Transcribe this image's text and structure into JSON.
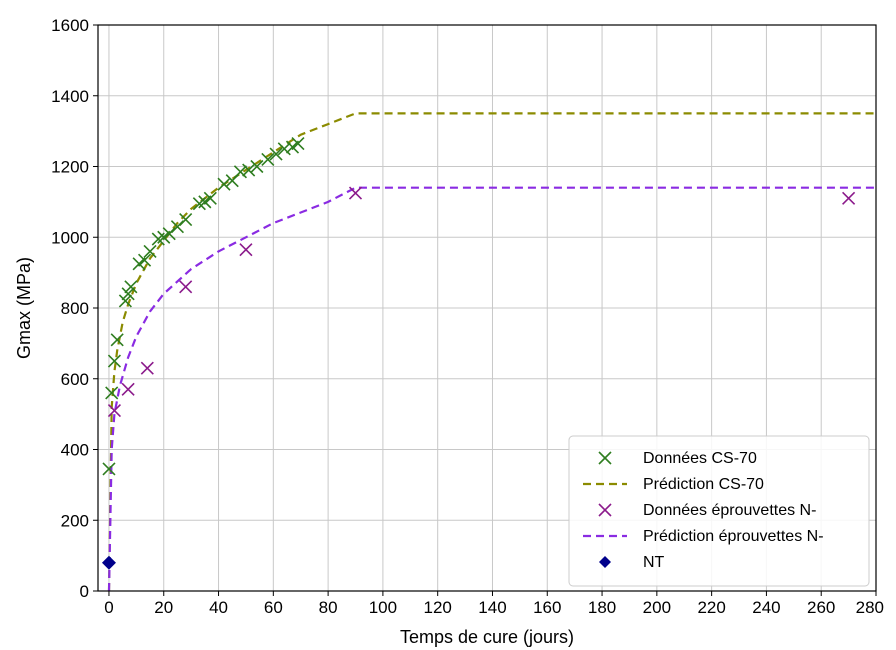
{
  "chart_data": {
    "type": "scatter",
    "title": "",
    "xlabel": "Temps de cure (jours)",
    "ylabel": "Gmax (MPa)",
    "xlim": [
      -4,
      280
    ],
    "ylim": [
      0,
      1600
    ],
    "xticks": [
      0,
      20,
      40,
      60,
      80,
      100,
      120,
      140,
      160,
      180,
      200,
      220,
      240,
      260,
      280
    ],
    "yticks": [
      0,
      200,
      400,
      600,
      800,
      1000,
      1200,
      1400,
      1600
    ],
    "grid": true,
    "legend_position": "bottom-right",
    "series": [
      {
        "name": "Données CS-70",
        "kind": "scatter",
        "marker": "x",
        "color": "#2e7d1f",
        "points": [
          [
            0,
            345
          ],
          [
            1,
            560
          ],
          [
            2,
            650
          ],
          [
            3,
            710
          ],
          [
            6,
            820
          ],
          [
            7,
            840
          ],
          [
            8,
            860
          ],
          [
            11,
            925
          ],
          [
            13,
            935
          ],
          [
            15,
            960
          ],
          [
            18,
            995
          ],
          [
            20,
            1000
          ],
          [
            22,
            1010
          ],
          [
            25,
            1030
          ],
          [
            28,
            1050
          ],
          [
            33,
            1095
          ],
          [
            35,
            1100
          ],
          [
            37,
            1110
          ],
          [
            42,
            1150
          ],
          [
            45,
            1160
          ],
          [
            48,
            1185
          ],
          [
            51,
            1190
          ],
          [
            54,
            1200
          ],
          [
            58,
            1220
          ],
          [
            61,
            1235
          ],
          [
            64,
            1250
          ],
          [
            67,
            1255
          ],
          [
            69,
            1265
          ]
        ]
      },
      {
        "name": "Prédiction CS-70",
        "kind": "line",
        "style": "dashed",
        "color": "#8b8b00",
        "points": [
          [
            0,
            0
          ],
          [
            1,
            520
          ],
          [
            2,
            620
          ],
          [
            3,
            680
          ],
          [
            5,
            760
          ],
          [
            7,
            810
          ],
          [
            10,
            870
          ],
          [
            15,
            940
          ],
          [
            20,
            990
          ],
          [
            25,
            1040
          ],
          [
            30,
            1080
          ],
          [
            40,
            1140
          ],
          [
            50,
            1190
          ],
          [
            60,
            1240
          ],
          [
            70,
            1290
          ],
          [
            80,
            1320
          ],
          [
            90,
            1350
          ],
          [
            280,
            1350
          ]
        ]
      },
      {
        "name": "Données éprouvettes N-",
        "kind": "scatter",
        "marker": "x",
        "color": "#8b1a8b",
        "points": [
          [
            2,
            510
          ],
          [
            7,
            570
          ],
          [
            14,
            630
          ],
          [
            28,
            860
          ],
          [
            50,
            965
          ],
          [
            90,
            1125
          ],
          [
            270,
            1110
          ]
        ]
      },
      {
        "name": "Prédiction éprouvettes N-",
        "kind": "line",
        "style": "dashed",
        "color": "#8a2be2",
        "points": [
          [
            0,
            0
          ],
          [
            1,
            400
          ],
          [
            2,
            500
          ],
          [
            4,
            580
          ],
          [
            7,
            660
          ],
          [
            10,
            720
          ],
          [
            15,
            790
          ],
          [
            20,
            840
          ],
          [
            30,
            910
          ],
          [
            40,
            960
          ],
          [
            50,
            1000
          ],
          [
            60,
            1040
          ],
          [
            70,
            1070
          ],
          [
            80,
            1100
          ],
          [
            90,
            1140
          ],
          [
            280,
            1140
          ]
        ]
      },
      {
        "name": "NT",
        "kind": "scatter",
        "marker": "diamond",
        "color": "#00008b",
        "points": [
          [
            0,
            80
          ]
        ]
      }
    ]
  }
}
